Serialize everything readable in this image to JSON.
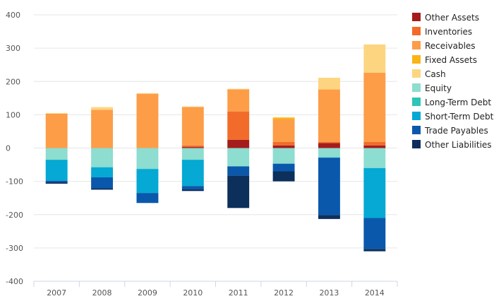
{
  "chart_data": {
    "type": "bar",
    "stacked": true,
    "categories": [
      "2007",
      "2008",
      "2009",
      "2010",
      "2011",
      "2012",
      "2013",
      "2014"
    ],
    "ylim": [
      -400,
      400
    ],
    "yticks": [
      400,
      300,
      200,
      100,
      0,
      -100,
      -200,
      -300,
      -400
    ],
    "grid": true,
    "legend_position": "right",
    "series": [
      {
        "name": "Other Assets",
        "color": "#a51c1c",
        "values": [
          0,
          0,
          0,
          3,
          25,
          8,
          15,
          8
        ]
      },
      {
        "name": "Inventories",
        "color": "#f26b2a",
        "values": [
          0,
          0,
          0,
          5,
          85,
          10,
          3,
          10
        ]
      },
      {
        "name": "Receivables",
        "color": "#fd9d48",
        "values": [
          103,
          115,
          163,
          115,
          66,
          68,
          158,
          208
        ]
      },
      {
        "name": "Fixed Assets",
        "color": "#fbb315",
        "values": [
          0,
          0,
          0,
          0,
          0,
          5,
          0,
          0
        ]
      },
      {
        "name": "Cash",
        "color": "#fdd580",
        "values": [
          2,
          8,
          2,
          2,
          2,
          2,
          35,
          85
        ]
      },
      {
        "name": "Equity",
        "color": "#8dddd0",
        "values": [
          -35,
          -57,
          -62,
          -35,
          -55,
          -47,
          -28,
          -60
        ]
      },
      {
        "name": "Long-Term Debt",
        "color": "#2dc5b6",
        "values": [
          -1,
          -1,
          -1,
          -1,
          0,
          0,
          0,
          0
        ]
      },
      {
        "name": "Short-Term Debt",
        "color": "#05a9d4",
        "values": [
          -62,
          -30,
          -72,
          -78,
          0,
          0,
          -1,
          -150
        ]
      },
      {
        "name": "Trade Payables",
        "color": "#0a58ab",
        "values": [
          -5,
          -33,
          -30,
          -10,
          -28,
          -23,
          -172,
          -93
        ]
      },
      {
        "name": "Other Liabilities",
        "color": "#0c2f5c",
        "values": [
          -4,
          -4,
          0,
          -5,
          -97,
          -30,
          -12,
          -7
        ]
      }
    ]
  }
}
